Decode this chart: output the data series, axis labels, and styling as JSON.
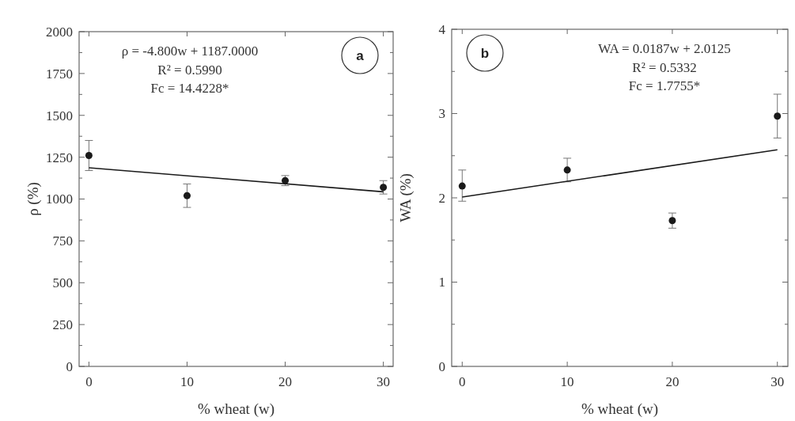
{
  "chart_data": [
    {
      "type": "scatter",
      "xlabel": "% wheat (w)",
      "ylabel": "ρ (%)",
      "xlim": [
        -1,
        31
      ],
      "xticks": [
        0,
        10,
        20,
        30
      ],
      "ylim": [
        0,
        2000
      ],
      "yticks": [
        0,
        {
          "value": 125,
          "label": null
        },
        250,
        {
          "value": 375,
          "label": null
        },
        500,
        {
          "value": 625,
          "label": null
        },
        750,
        {
          "value": 875,
          "label": null
        },
        1000,
        {
          "value": 1125,
          "label": null
        },
        1250,
        {
          "value": 1375,
          "label": null
        },
        1500,
        {
          "value": 1625,
          "label": null
        },
        1750,
        {
          "value": 1875,
          "label": null
        },
        2000
      ],
      "grid": false,
      "marker": "circle",
      "annotations": [
        "ρ = -4.800w + 1187.0000",
        "R² = 0.5990",
        "Fc = 14.4228*",
        "a"
      ],
      "series": [
        {
          "color": "#1a1a1a",
          "x": [
            0,
            10,
            20,
            30
          ],
          "values": [
            1260,
            1020,
            1110,
            1070
          ],
          "errors": [
            [
              1170,
              1350
            ],
            [
              950,
              1090
            ],
            [
              1080,
              1140
            ],
            [
              1030,
              1110
            ]
          ]
        },
        {
          "type": "line",
          "marker": "none",
          "color": "#1a1a1a",
          "x": [
            0,
            30
          ],
          "values": [
            1187,
            1043
          ]
        }
      ]
    },
    {
      "type": "scatter",
      "xlabel": "% wheat (w)",
      "ylabel": "WA (%)",
      "xlim": [
        -1,
        31
      ],
      "xticks": [
        0,
        10,
        20,
        30
      ],
      "ylim": [
        0,
        4
      ],
      "yticks": [
        0,
        {
          "value": 0.5,
          "label": null
        },
        1,
        {
          "value": 1.5,
          "label": null
        },
        2,
        {
          "value": 2.5,
          "label": null
        },
        3,
        {
          "value": 3.5,
          "label": null
        },
        4
      ],
      "grid": false,
      "marker": "circle",
      "annotations": [
        "WA = 0.0187w + 2.0125",
        "R² = 0.5332",
        "Fc = 1.7755*",
        "b"
      ],
      "series": [
        {
          "color": "#1a1a1a",
          "x": [
            0,
            10,
            20,
            30
          ],
          "values": [
            2.14,
            2.33,
            1.73,
            2.97
          ],
          "errors": [
            [
              1.96,
              2.33
            ],
            [
              2.19,
              2.47
            ],
            [
              1.64,
              1.82
            ],
            [
              2.71,
              3.23
            ]
          ]
        },
        {
          "type": "line",
          "marker": "none",
          "color": "#1a1a1a",
          "x": [
            0,
            30
          ],
          "values": [
            2.01,
            2.57
          ]
        }
      ]
    }
  ]
}
